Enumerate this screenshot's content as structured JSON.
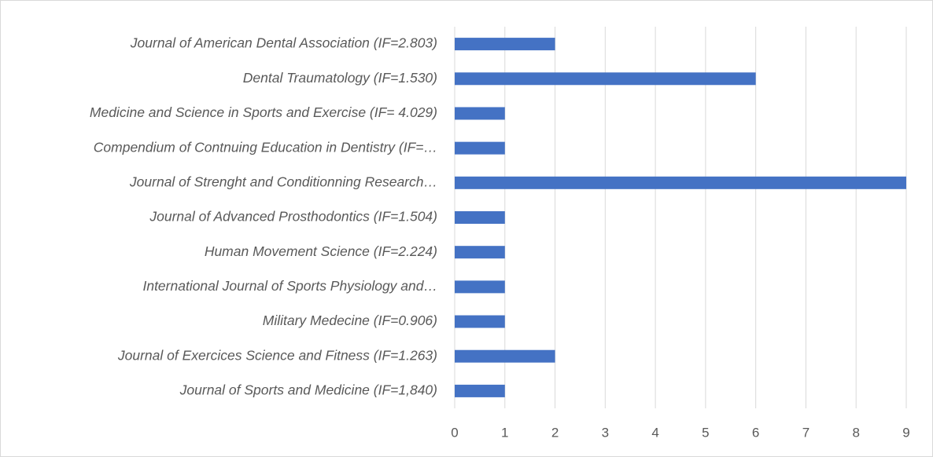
{
  "chart_data": {
    "type": "bar",
    "orientation": "horizontal",
    "categories": [
      "Journal of American Dental Association (IF=2.803)",
      "Dental Traumatology (IF=1.530)",
      "Medicine and Science in Sports and Exercise (IF= 4.029)",
      "Compendium of Contnuing Education in Dentistry (IF=…",
      "Journal of Strenght and Conditionning Research…",
      "Journal of Advanced Prosthodontics (IF=1.504)",
      "Human Movement Science (IF=2.224)",
      "International Journal of Sports Physiology and…",
      "Military Medecine (IF=0.906)",
      "Journal of Exercices Science and Fitness (IF=1.263)",
      "Journal of Sports and Medicine (IF=1,840)"
    ],
    "values": [
      2,
      6,
      1,
      1,
      9,
      1,
      1,
      1,
      1,
      2,
      1
    ],
    "color": "#4472c4",
    "xlim": [
      0,
      9
    ],
    "xticks": [
      0,
      1,
      2,
      3,
      4,
      5,
      6,
      7,
      8,
      9
    ],
    "grid": true
  }
}
